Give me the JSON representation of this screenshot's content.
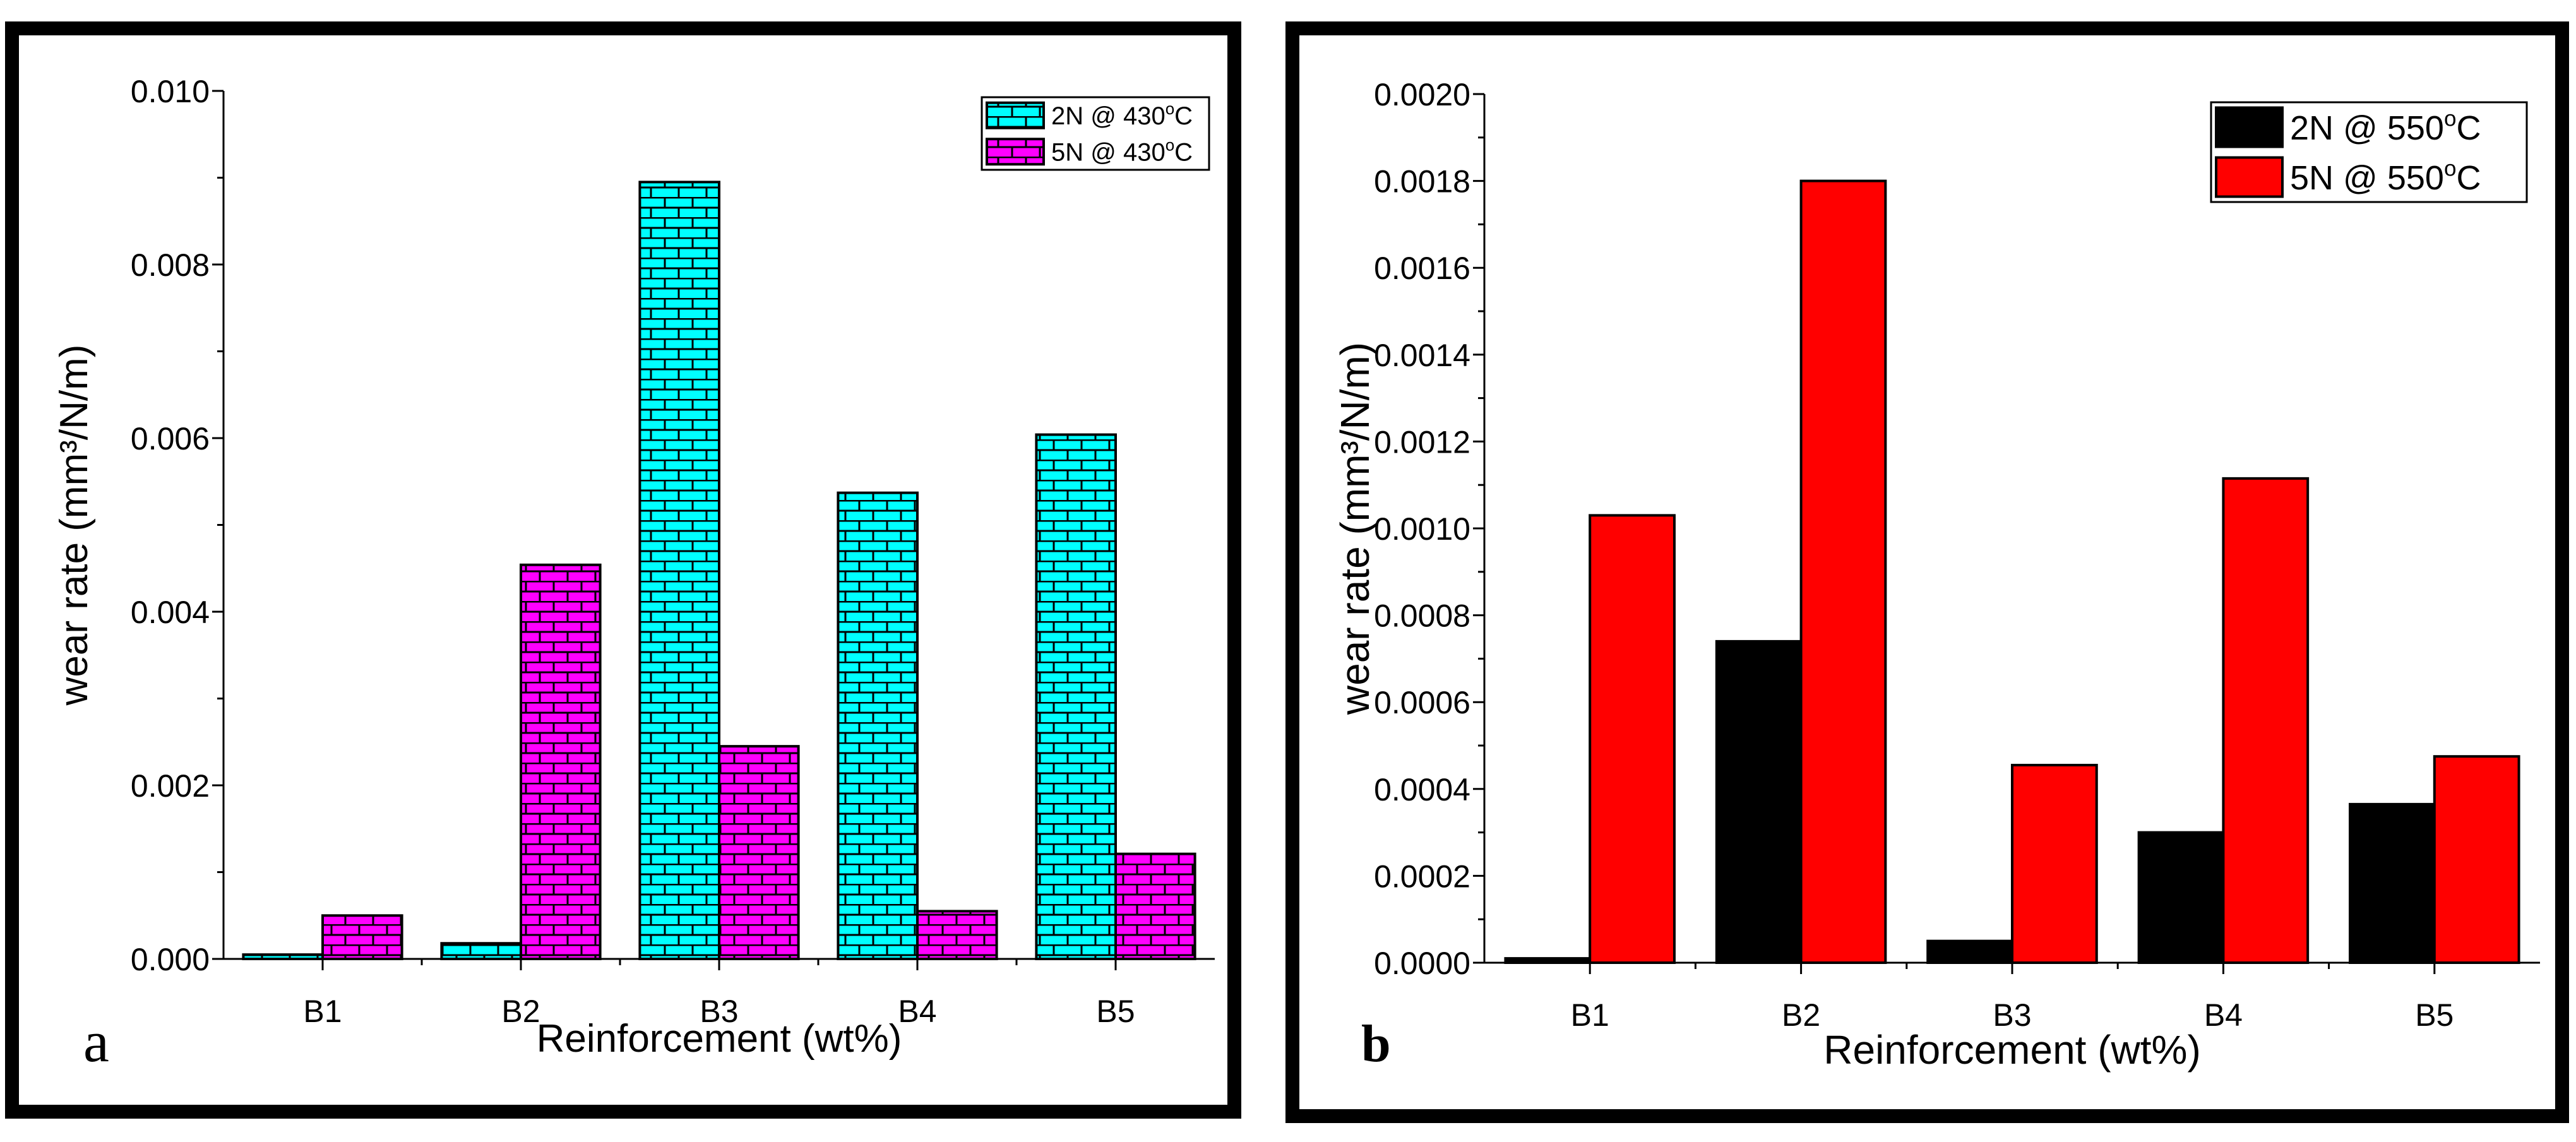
{
  "chart_data": [
    {
      "panel": "a",
      "type": "bar",
      "title": "",
      "xlabel": "Reinforcement (wt%)",
      "ylabel": "wear rate (mm³/N/m)",
      "panel_letter": "a",
      "categories": [
        "B1",
        "B2",
        "B3",
        "B4",
        "B5"
      ],
      "ylim": [
        0,
        0.01
      ],
      "yticks": [
        "0.000",
        "0.002",
        "0.004",
        "0.006",
        "0.008",
        "0.010"
      ],
      "ytick_values": [
        0,
        0.002,
        0.004,
        0.006,
        0.008,
        0.01
      ],
      "legend_position": "top-right",
      "grid": false,
      "series": [
        {
          "name": "2N @ 430ºC",
          "legend_main": "2N @ 430",
          "legend_sup": "o",
          "legend_end": "C",
          "color": "#00ffff",
          "pattern": "brick",
          "values": [
            5e-05,
            0.00018,
            0.00895,
            0.00537,
            0.00604
          ]
        },
        {
          "name": "5N @ 430ºC",
          "legend_main": "5N @ 430",
          "legend_sup": "o",
          "legend_end": "C",
          "color": "#ff00ff",
          "pattern": "brick",
          "values": [
            0.0005,
            0.00454,
            0.00245,
            0.00055,
            0.00121
          ]
        }
      ]
    },
    {
      "panel": "b",
      "type": "bar",
      "title": "",
      "xlabel": "Reinforcement (wt%)",
      "ylabel": "wear rate (mm³/N/m)",
      "panel_letter": "b",
      "categories": [
        "B1",
        "B2",
        "B3",
        "B4",
        "B5"
      ],
      "ylim": [
        0,
        0.002
      ],
      "yticks": [
        "0.0000",
        "0.0002",
        "0.0004",
        "0.0006",
        "0.0008",
        "0.0010",
        "0.0012",
        "0.0014",
        "0.0016",
        "0.0018",
        "0.0020"
      ],
      "ytick_values": [
        0,
        0.0002,
        0.0004,
        0.0006,
        0.0008,
        0.001,
        0.0012,
        0.0014,
        0.0016,
        0.0018,
        0.002
      ],
      "legend_position": "top-right",
      "grid": false,
      "series": [
        {
          "name": "2N @ 550ºC",
          "legend_main": "2N @ 550",
          "legend_sup": "o",
          "legend_end": "C",
          "color": "#000000",
          "pattern": "solid",
          "values": [
            1e-05,
            0.00074,
            5e-05,
            0.0003,
            0.000365
          ]
        },
        {
          "name": "5N @ 550ºC",
          "legend_main": "5N @ 550",
          "legend_sup": "o",
          "legend_end": "C",
          "color": "#ff0000",
          "pattern": "solid",
          "values": [
            0.00103,
            0.0018,
            0.000455,
            0.001115,
            0.000475
          ]
        }
      ]
    }
  ]
}
